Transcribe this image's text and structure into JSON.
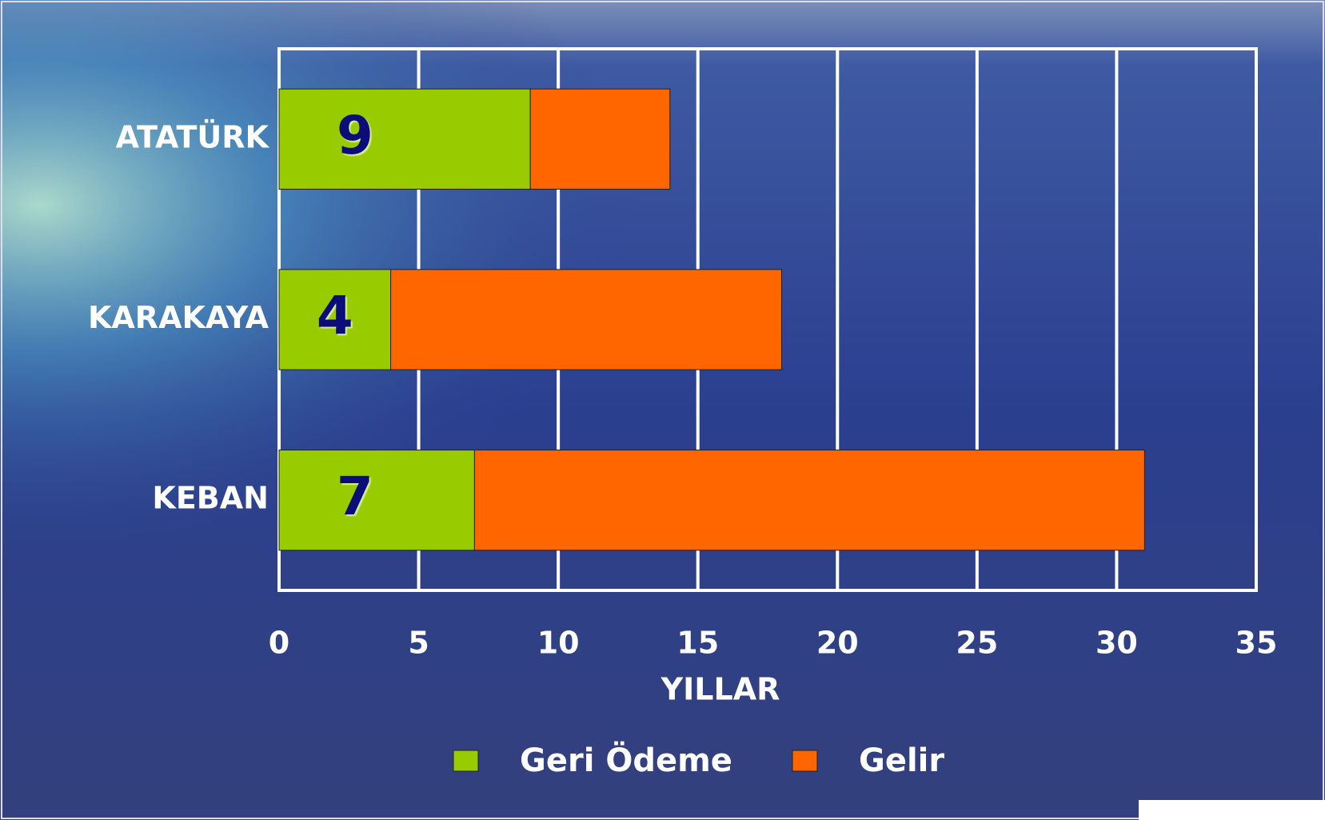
{
  "chart_data": {
    "type": "bar",
    "orientation": "horizontal",
    "stacked": true,
    "categories": [
      "ATATÜRK",
      "KARAKAYA",
      "KEBAN"
    ],
    "series": [
      {
        "name": "Geri Ödeme",
        "color": "#99cc00",
        "values": [
          9,
          4,
          7
        ]
      },
      {
        "name": "Gelir",
        "color": "#ff6600",
        "values": [
          5,
          14,
          24
        ]
      }
    ],
    "xlabel": "YILLAR",
    "xlim": [
      0,
      35
    ],
    "xticks": [
      0,
      5,
      10,
      15,
      20,
      25,
      30,
      35
    ],
    "grid": true,
    "legend": "bottom"
  }
}
